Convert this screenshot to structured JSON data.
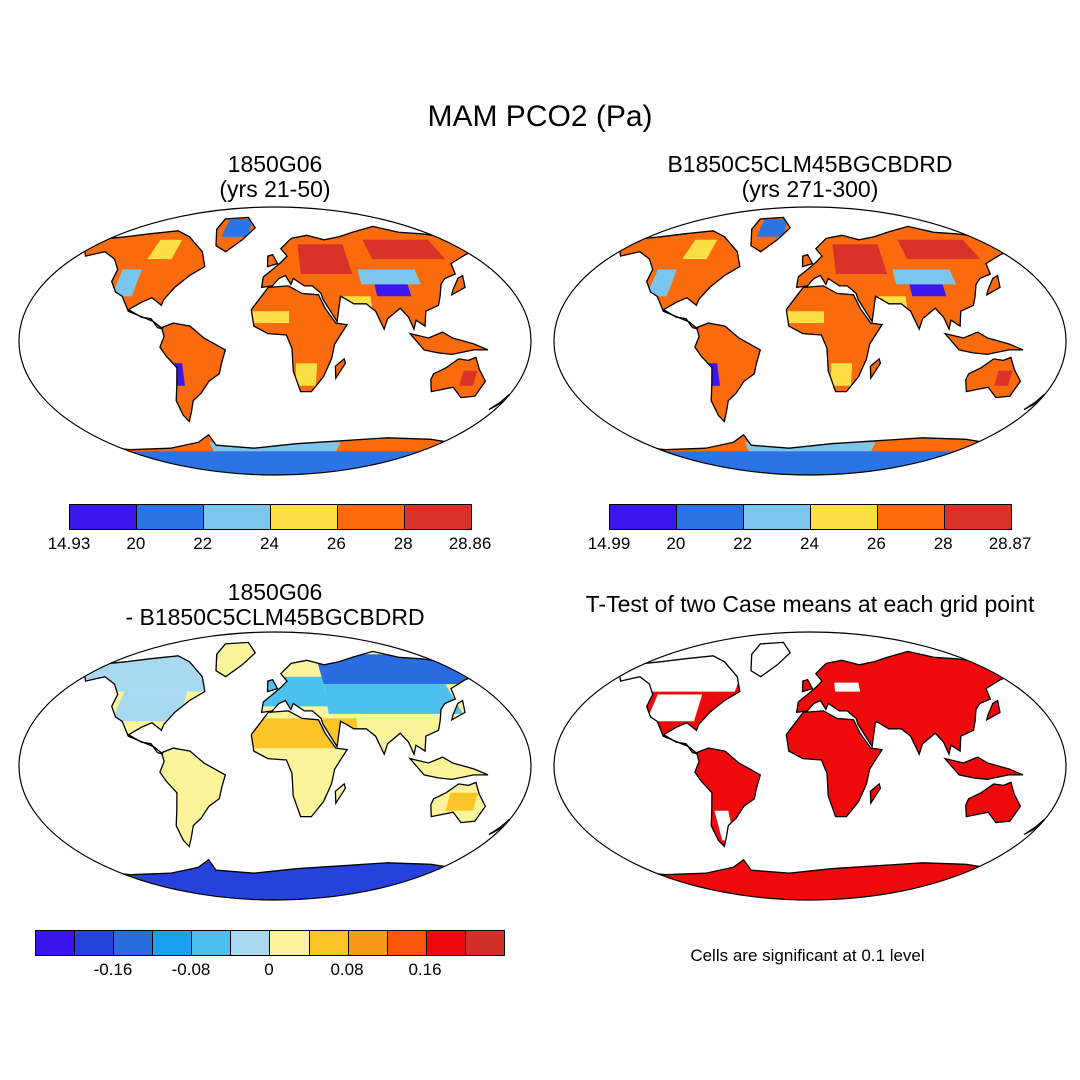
{
  "main_title": "MAM PCO2 (Pa)",
  "panels": {
    "top_left": {
      "title_line1": "1850G06",
      "title_line2": "(yrs 21-50)"
    },
    "top_right": {
      "title_line1": "B1850C5CLM45BGCBDRD",
      "title_line2": "(yrs 271-300)"
    },
    "bottom_left": {
      "title_line1": "1850G06",
      "title_line2": "- B1850C5CLM45BGCBDRD"
    },
    "bottom_right": {
      "title_line1": "T-Test of two Case means at each grid point"
    }
  },
  "colorbars": {
    "left": {
      "colors": [
        "#3b17ee",
        "#2b74e6",
        "#7cc6ee",
        "#fbdf45",
        "#f96b0c",
        "#d93229"
      ],
      "labels": [
        "14.93",
        "20",
        "22",
        "24",
        "26",
        "28",
        "28.86"
      ]
    },
    "right": {
      "colors": [
        "#3b17ee",
        "#2b74e6",
        "#7cc6ee",
        "#fbdf45",
        "#f96b0c",
        "#d93229"
      ],
      "labels": [
        "14.99",
        "20",
        "22",
        "24",
        "26",
        "28",
        "28.87"
      ]
    },
    "diff": {
      "colors": [
        "#3a14ec",
        "#2641dc",
        "#2a6ce0",
        "#1aa0f0",
        "#4cc0ee",
        "#a9d9f1",
        "#fcf49a",
        "#fbc52a",
        "#f99a16",
        "#f7560b",
        "#ee0a0a",
        "#d22f29"
      ],
      "labels": [
        "-0.16",
        "-0.08",
        "0",
        "0.08",
        "0.16"
      ]
    }
  },
  "ttest_note": "Cells are significant at 0.1 level",
  "colors": {
    "significant": "#ee0a0a",
    "coast": "#000000"
  }
}
